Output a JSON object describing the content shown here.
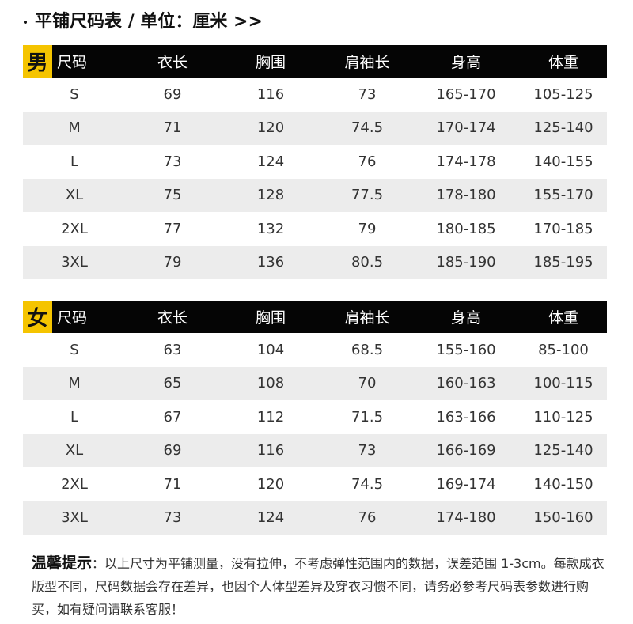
{
  "title": "平铺尺码表 / 单位：厘米 >>",
  "headers": [
    "尺码",
    "衣长",
    "胸围",
    "肩袖长",
    "身高",
    "体重"
  ],
  "men": {
    "tag": "男",
    "rows": [
      [
        "S",
        "69",
        "116",
        "73",
        "165-170",
        "105-125"
      ],
      [
        "M",
        "71",
        "120",
        "74.5",
        "170-174",
        "125-140"
      ],
      [
        "L",
        "73",
        "124",
        "76",
        "174-178",
        "140-155"
      ],
      [
        "XL",
        "75",
        "128",
        "77.5",
        "178-180",
        "155-170"
      ],
      [
        "2XL",
        "77",
        "132",
        "79",
        "180-185",
        "170-185"
      ],
      [
        "3XL",
        "79",
        "136",
        "80.5",
        "185-190",
        "185-195"
      ]
    ]
  },
  "women": {
    "tag": "女",
    "rows": [
      [
        "S",
        "63",
        "104",
        "68.5",
        "155-160",
        "85-100"
      ],
      [
        "M",
        "65",
        "108",
        "70",
        "160-163",
        "100-115"
      ],
      [
        "L",
        "67",
        "112",
        "71.5",
        "163-166",
        "110-125"
      ],
      [
        "XL",
        "69",
        "116",
        "73",
        "166-169",
        "125-140"
      ],
      [
        "2XL",
        "71",
        "120",
        "74.5",
        "169-174",
        "140-150"
      ],
      [
        "3XL",
        "73",
        "124",
        "76",
        "174-180",
        "150-160"
      ]
    ]
  },
  "note": {
    "title": "温馨提示",
    "text": "：以上尺寸为平铺测量，没有拉伸，不考虑弹性范围内的数据，误差范围 1-3cm。每款成衣版型不同，尺码数据会存在差异，也因个人体型差异及穿衣习惯不同，请务必参考尺码表参数进行购买，如有疑问请联系客服！"
  },
  "colors": {
    "header_bg": "#050505",
    "tag_bg": "#f5c400",
    "alt_row": "#ececec"
  }
}
